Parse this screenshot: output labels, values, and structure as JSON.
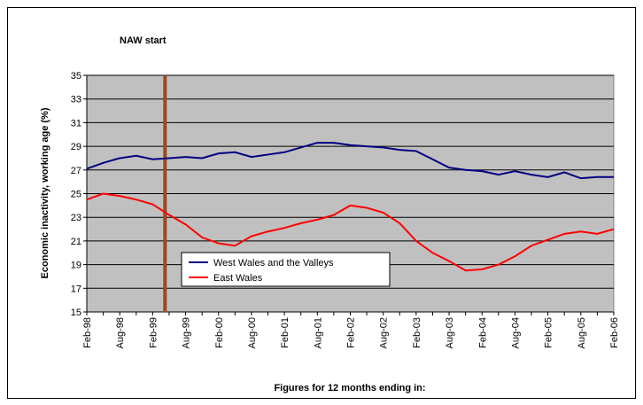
{
  "chart_data": {
    "type": "line",
    "title": "NAW start",
    "ylabel": "Economic inactivity, working age (%)",
    "xlabel": "Figures for 12 months ending in:",
    "categories": [
      "Feb-98",
      null,
      "Aug-98",
      null,
      "Feb-99",
      null,
      "Aug-99",
      null,
      "Feb-00",
      null,
      "Aug-00",
      null,
      "Feb-01",
      null,
      "Aug-01",
      null,
      "Feb-02",
      null,
      "Aug-02",
      null,
      "Feb-03",
      null,
      "Aug-03",
      null,
      "Feb-04",
      null,
      "Aug-04",
      null,
      "Feb-05",
      null,
      "Aug-05",
      null,
      "Feb-06"
    ],
    "series": [
      {
        "name": "West Wales and the Valleys",
        "color": "#000080",
        "values": [
          27.1,
          27.6,
          28.0,
          28.2,
          27.9,
          28.0,
          28.1,
          28.0,
          28.4,
          28.5,
          28.1,
          28.3,
          28.5,
          28.9,
          29.3,
          29.3,
          29.1,
          29.0,
          28.9,
          28.7,
          28.6,
          27.9,
          27.2,
          27.0,
          26.9,
          26.6,
          26.9,
          26.6,
          26.4,
          26.8,
          26.3,
          26.4,
          26.4
        ]
      },
      {
        "name": "East Wales",
        "color": "#ff0000",
        "values": [
          24.5,
          25.0,
          24.8,
          24.5,
          24.1,
          23.2,
          22.4,
          21.3,
          20.8,
          20.6,
          21.4,
          21.8,
          22.1,
          22.5,
          22.8,
          23.2,
          24.0,
          23.8,
          23.4,
          22.5,
          21.0,
          20.0,
          19.3,
          18.5,
          18.6,
          19.0,
          19.7,
          20.6,
          21.1,
          21.6,
          21.8,
          21.6,
          22.0
        ]
      }
    ],
    "marker_line": {
      "x_index": 4.75,
      "color": "#a0461e"
    },
    "ylim": [
      15,
      35
    ],
    "yticks": [
      15,
      17,
      19,
      21,
      23,
      25,
      27,
      29,
      31,
      33,
      35
    ],
    "grid": true,
    "legend": "lower left",
    "background": "#c0c0c0"
  }
}
